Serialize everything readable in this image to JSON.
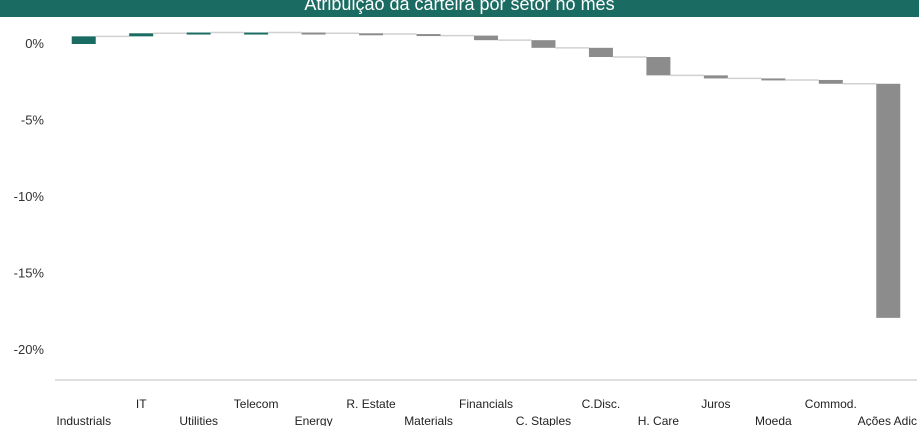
{
  "chart_data": {
    "type": "bar",
    "subtype": "waterfall",
    "title": "Atribuição da carteira por setor no mês",
    "categories": [
      "Industrials",
      "IT",
      "Utilities",
      "Telecom",
      "Energy",
      "R. Estate",
      "Materials",
      "Financials",
      "C. Staples",
      "C.Disc.",
      "H. Care",
      "Juros",
      "Moeda",
      "Commod.",
      "Ações Adic"
    ],
    "values": [
      0.5,
      0.2,
      0.05,
      0.0,
      -0.05,
      -0.05,
      -0.1,
      -0.3,
      -0.5,
      -0.6,
      -1.2,
      -0.2,
      -0.1,
      -0.25,
      -15.3
    ],
    "y_tick_labels": [
      "0%",
      "-5%",
      "-10%",
      "-15%",
      "-20%"
    ],
    "y_ticks": [
      0,
      -5,
      -10,
      -15,
      -20
    ],
    "ylim": [
      -21,
      1.1
    ],
    "xlabel": "",
    "ylabel": "",
    "colors": {
      "positive": "#1a6b61",
      "negative": "#8c8c8c",
      "connector": "#d0d0d0",
      "axis": "#bfbfbf",
      "title_bg": "#1a6b61"
    }
  }
}
